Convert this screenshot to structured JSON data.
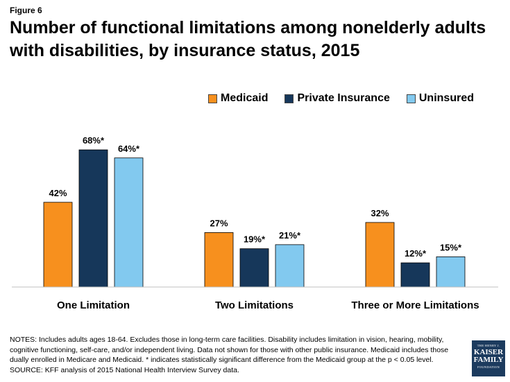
{
  "figure_label": "Figure 6",
  "chart_data": {
    "type": "bar",
    "title": "Number of functional limitations among nonelderly adults with disabilities, by insurance status, 2015",
    "xlabel": "",
    "ylabel": "",
    "ylim": [
      0,
      80
    ],
    "grid": false,
    "legend_position": "top-right",
    "categories": [
      "One Limitation",
      "Two Limitations",
      "Three or More Limitations"
    ],
    "series": [
      {
        "name": "Medicaid",
        "color": "#f7901e",
        "values": [
          42,
          27,
          32
        ],
        "labels": [
          "42%",
          "27%",
          "32%"
        ]
      },
      {
        "name": "Private Insurance",
        "color": "#16375a",
        "values": [
          68,
          19,
          12
        ],
        "labels": [
          "68%*",
          "19%*",
          "12%*"
        ]
      },
      {
        "name": "Uninsured",
        "color": "#82c9ef",
        "values": [
          64,
          21,
          15
        ],
        "labels": [
          "64%*",
          "21%*",
          "15%*"
        ]
      }
    ]
  },
  "notes": "NOTES: Includes adults ages 18-64. Excludes those in long-term care facilities. Disability includes limitation in vision, hearing, mobility, cognitive functioning, self-care, and/or independent living. Data not shown for those with other public insurance. Medicaid includes those dually enrolled in Medicare and Medicaid. * indicates statistically significant difference from the Medicaid group at the p < 0.05 level. SOURCE: KFF analysis of 2015 National Health Interview Survey data.",
  "logo": {
    "line1": "THE HENRY J.",
    "line2": "KAISER",
    "line3": "FAMILY",
    "line4": "FOUNDATION"
  }
}
